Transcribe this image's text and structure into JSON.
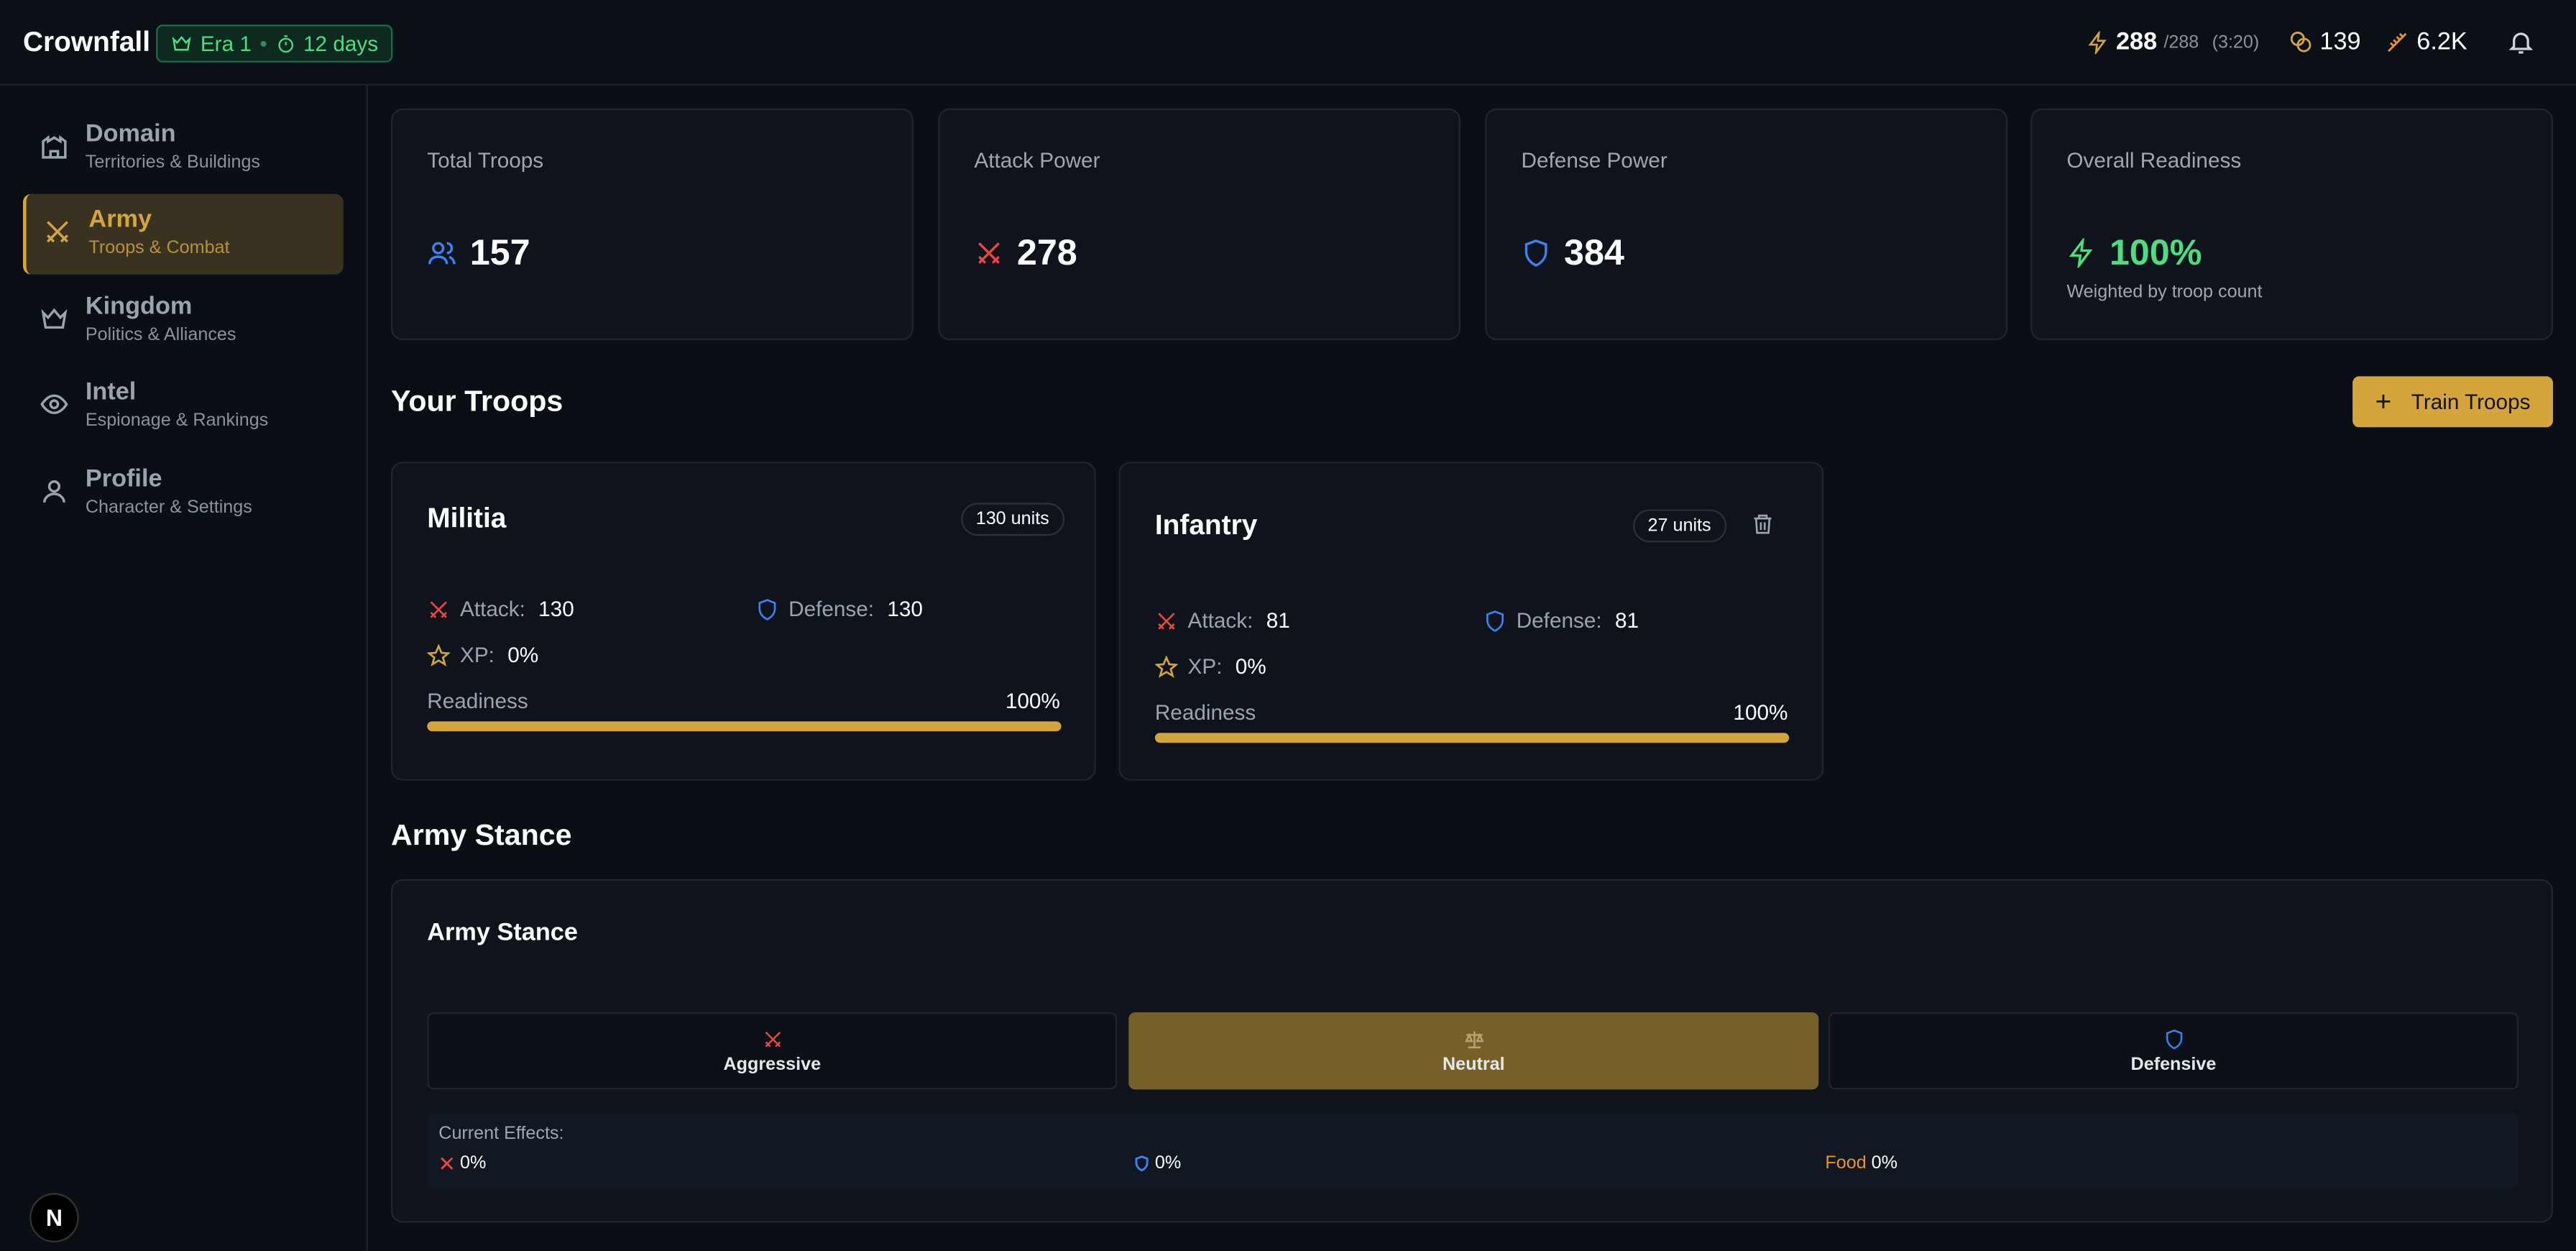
{
  "header": {
    "brand": "Crownfall",
    "era": "Era 1",
    "days": "12 days",
    "energy": "288",
    "energy_max": "/288",
    "timer": "(3:20)",
    "gold": "139",
    "food": "6.2K"
  },
  "nav": [
    {
      "label": "Domain",
      "sub": "Territories & Buildings"
    },
    {
      "label": "Army",
      "sub": "Troops & Combat"
    },
    {
      "label": "Kingdom",
      "sub": "Politics & Alliances"
    },
    {
      "label": "Intel",
      "sub": "Espionage & Rankings"
    },
    {
      "label": "Profile",
      "sub": "Character & Settings"
    }
  ],
  "stats": [
    {
      "label": "Total Troops",
      "value": "157"
    },
    {
      "label": "Attack Power",
      "value": "278"
    },
    {
      "label": "Defense Power",
      "value": "384"
    },
    {
      "label": "Overall Readiness",
      "value": "100%",
      "note": "Weighted by troop count"
    }
  ],
  "troops_section": {
    "title": "Your Troops",
    "button": "Train Troops"
  },
  "troops": [
    {
      "name": "Militia",
      "units": "130 units",
      "attack_label": "Attack:",
      "attack": "130",
      "defense_label": "Defense:",
      "defense": "130",
      "xp_label": "XP:",
      "xp": "0%",
      "readiness_label": "Readiness",
      "readiness": "100%"
    },
    {
      "name": "Infantry",
      "units": "27 units",
      "attack_label": "Attack:",
      "attack": "81",
      "defense_label": "Defense:",
      "defense": "81",
      "xp_label": "XP:",
      "xp": "0%",
      "readiness_label": "Readiness",
      "readiness": "100%"
    }
  ],
  "stance": {
    "section_title": "Army Stance",
    "card_title": "Army Stance",
    "options": [
      "Aggressive",
      "Neutral",
      "Defensive"
    ],
    "effects_label": "Current Effects:",
    "effects": [
      {
        "value": "0%"
      },
      {
        "value": "0%"
      },
      {
        "label": "Food",
        "value": "0%"
      }
    ]
  },
  "footer": {
    "logo": "N"
  }
}
